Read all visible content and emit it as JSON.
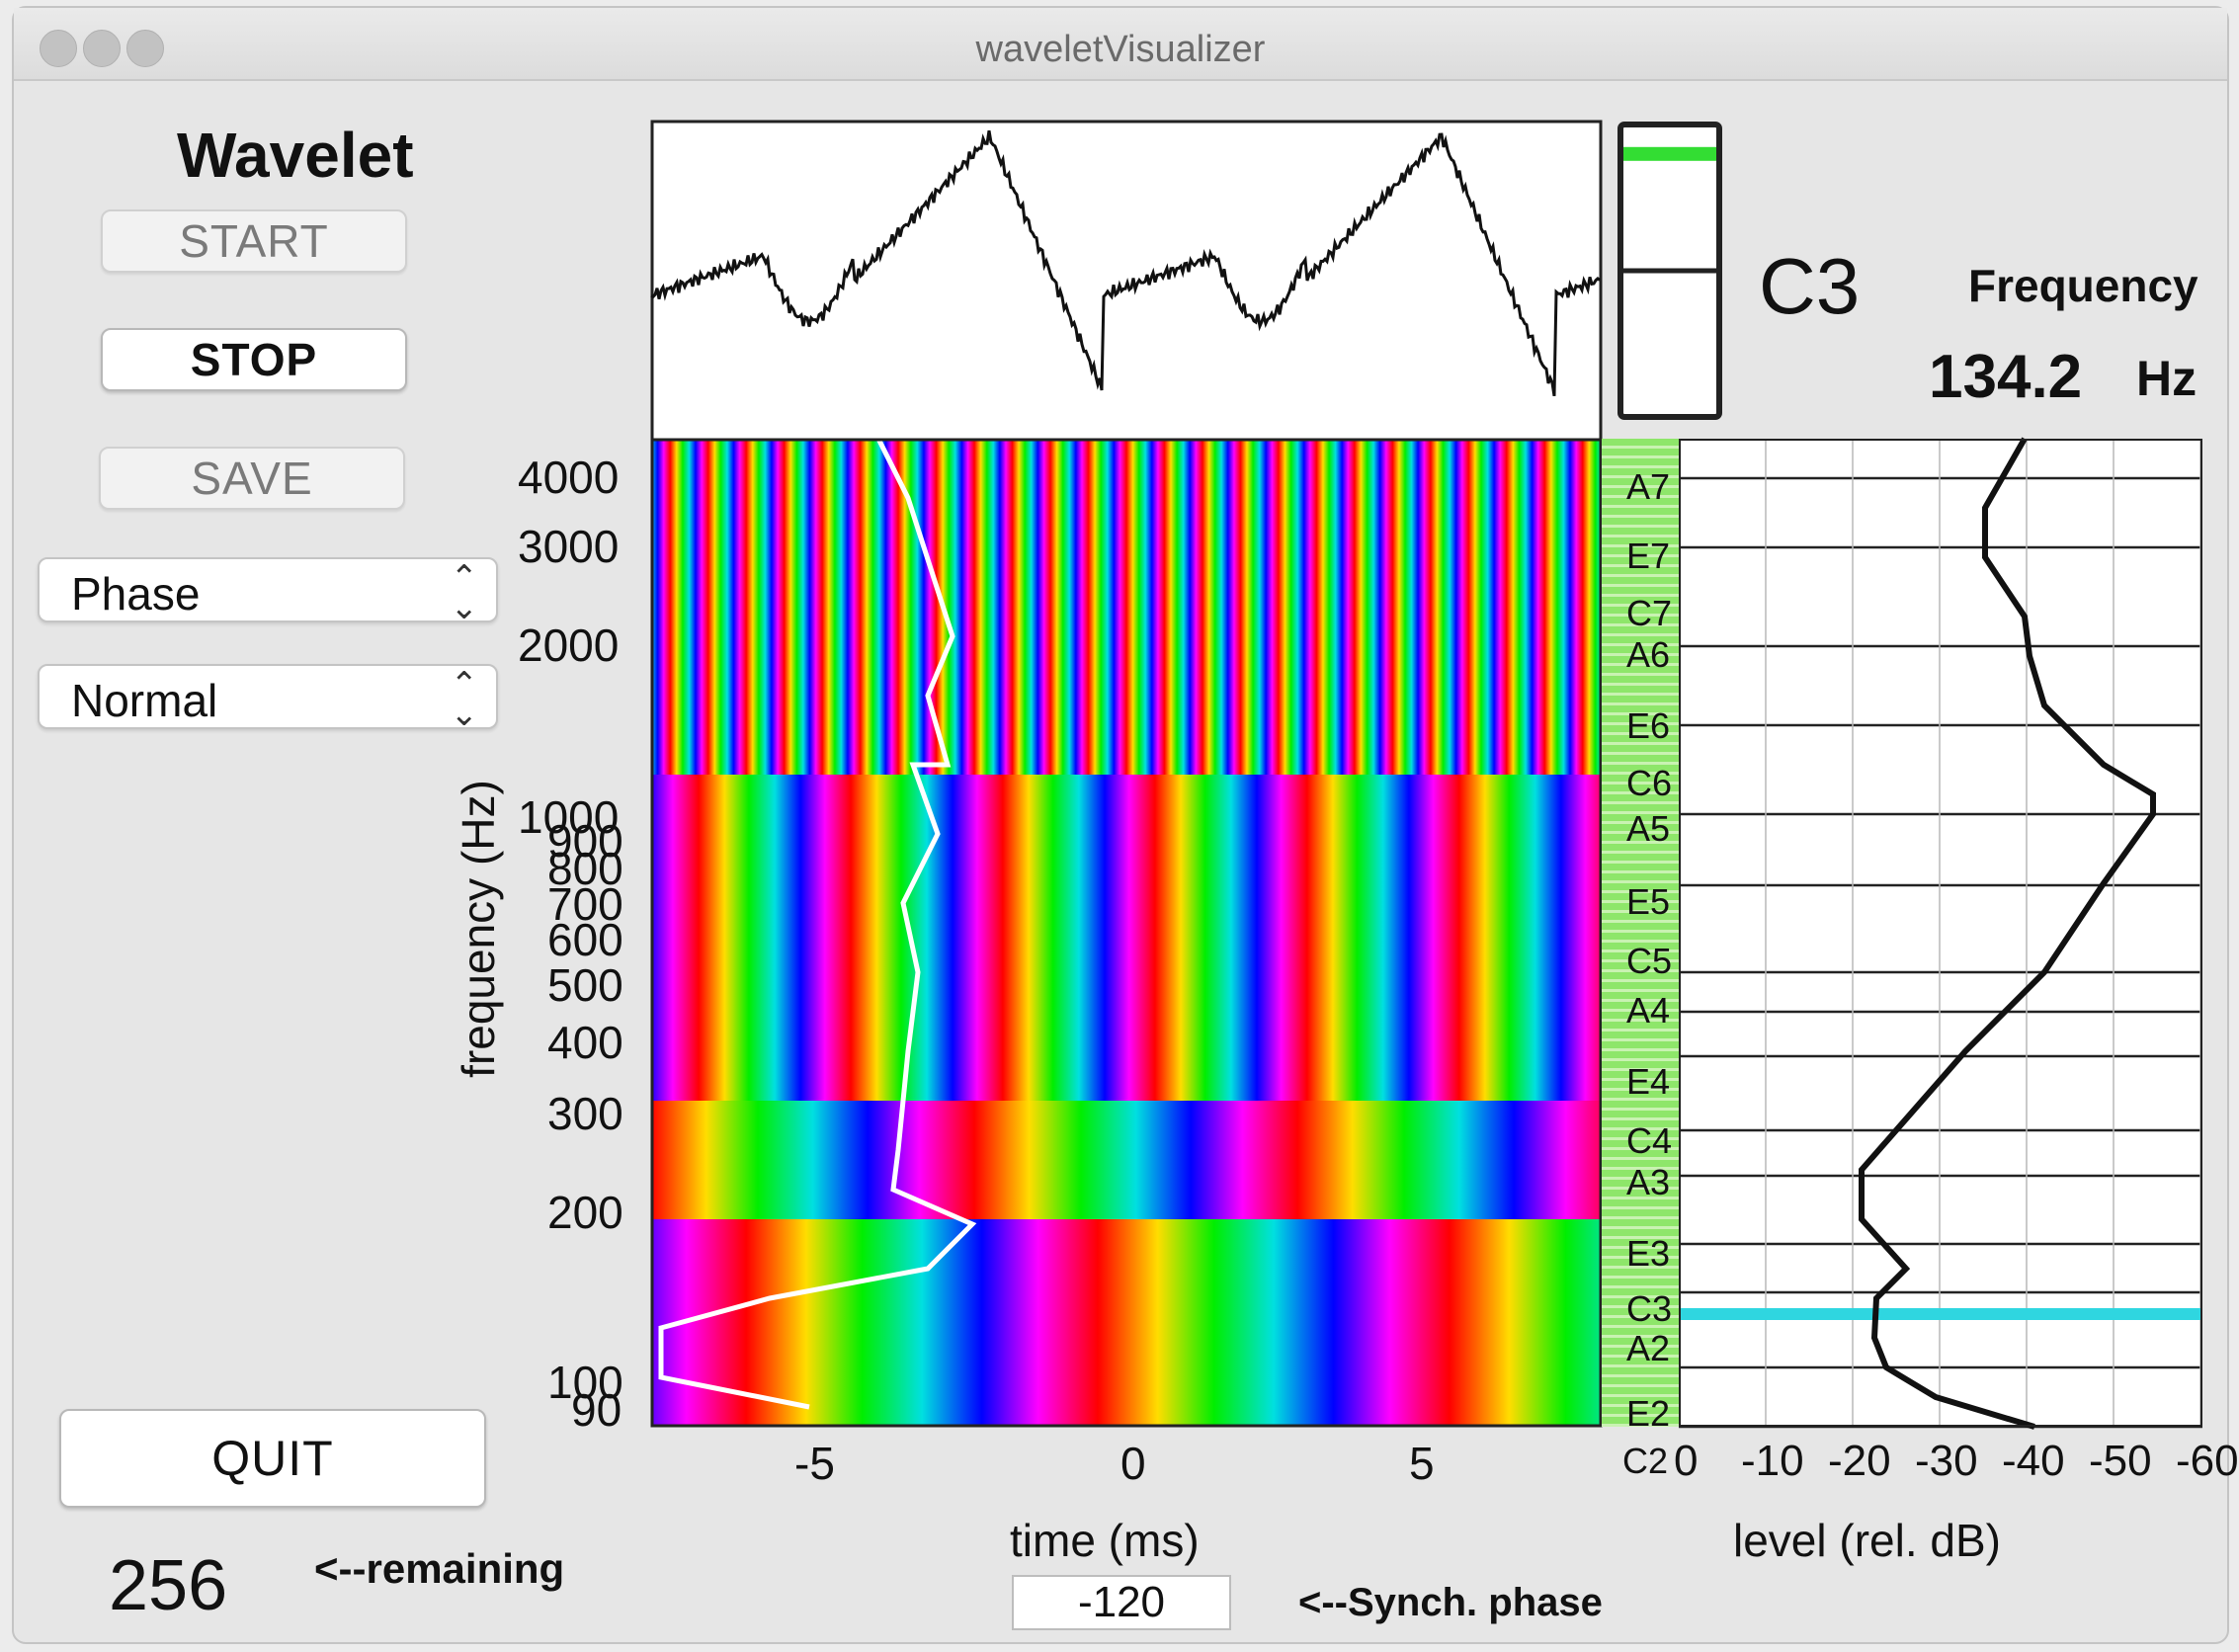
{
  "window": {
    "title": "waveletVisualizer"
  },
  "panel": {
    "heading": "Wavelet"
  },
  "buttons": {
    "start": "START",
    "stop": "STOP",
    "save": "SAVE",
    "quit": "QUIT"
  },
  "selects": {
    "display_mode": "Phase",
    "scaling": "Normal"
  },
  "remaining": {
    "value": "256",
    "label": "<--remaining"
  },
  "synch": {
    "value": "-120",
    "label": "<--Synch. phase"
  },
  "note": {
    "current": "C3",
    "level_fraction": 0.06
  },
  "frequency": {
    "label": "Frequency",
    "value": "134.2",
    "unit": "Hz"
  },
  "spectrogram": {
    "y_axis_label": "frequency (Hz)",
    "y_ticks": [
      "4000",
      "3000",
      "2000",
      "1000",
      "900",
      "800",
      "700",
      "600",
      "500",
      "400",
      "300",
      "200",
      "100",
      "90"
    ],
    "x_axis_label": "time (ms)",
    "x_ticks": [
      "-5",
      "0",
      "5"
    ]
  },
  "notes_axis": {
    "labels": [
      "A7",
      "E7",
      "C7",
      "A6",
      "E6",
      "C6",
      "A5",
      "E5",
      "C5",
      "A4",
      "E4",
      "C4",
      "A3",
      "E3",
      "C3",
      "A2",
      "E2",
      "C2"
    ]
  },
  "level_axis": {
    "label": "level (rel. dB)",
    "ticks": [
      "0",
      "-10",
      "-20",
      "-30",
      "-40",
      "-50",
      "-60"
    ]
  },
  "colors": {
    "highlight": "#2fd6e0",
    "indicator": "#33dd33",
    "note_strip": "#8ee66a"
  }
}
